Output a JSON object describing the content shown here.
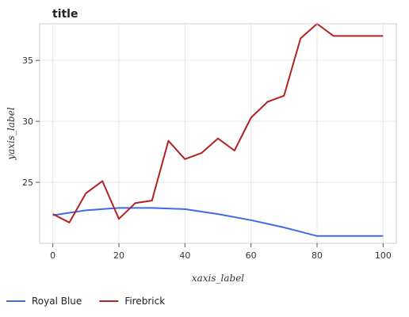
{
  "chart_data": {
    "type": "line",
    "title": "title",
    "xlabel": "xaxis_label",
    "ylabel": "yaxis_label",
    "xlim": [
      -4,
      104
    ],
    "ylim": [
      20,
      38
    ],
    "xticks": [
      0,
      20,
      40,
      60,
      80,
      100
    ],
    "yticks": [
      25,
      30,
      35
    ],
    "grid": true,
    "legend_position": "bottom",
    "series": [
      {
        "name": "Royal Blue",
        "color": "#4169e1",
        "x": [
          0,
          10,
          20,
          30,
          40,
          50,
          60,
          70,
          80,
          90,
          100
        ],
        "y": [
          22.3,
          22.7,
          22.9,
          22.9,
          22.8,
          22.4,
          21.9,
          21.3,
          20.6,
          20.6,
          20.6
        ]
      },
      {
        "name": "Firebrick",
        "color": "#b22222",
        "x": [
          0,
          5,
          10,
          15,
          20,
          25,
          30,
          35,
          40,
          45,
          50,
          55,
          60,
          65,
          70,
          75,
          80,
          85,
          90,
          95,
          100
        ],
        "y": [
          22.4,
          21.7,
          24.1,
          25.1,
          22.0,
          23.3,
          23.5,
          28.4,
          26.9,
          27.4,
          28.6,
          27.6,
          30.3,
          31.6,
          32.1,
          36.8,
          38.0,
          37.0,
          37.0,
          37.0,
          37.0
        ]
      }
    ]
  }
}
